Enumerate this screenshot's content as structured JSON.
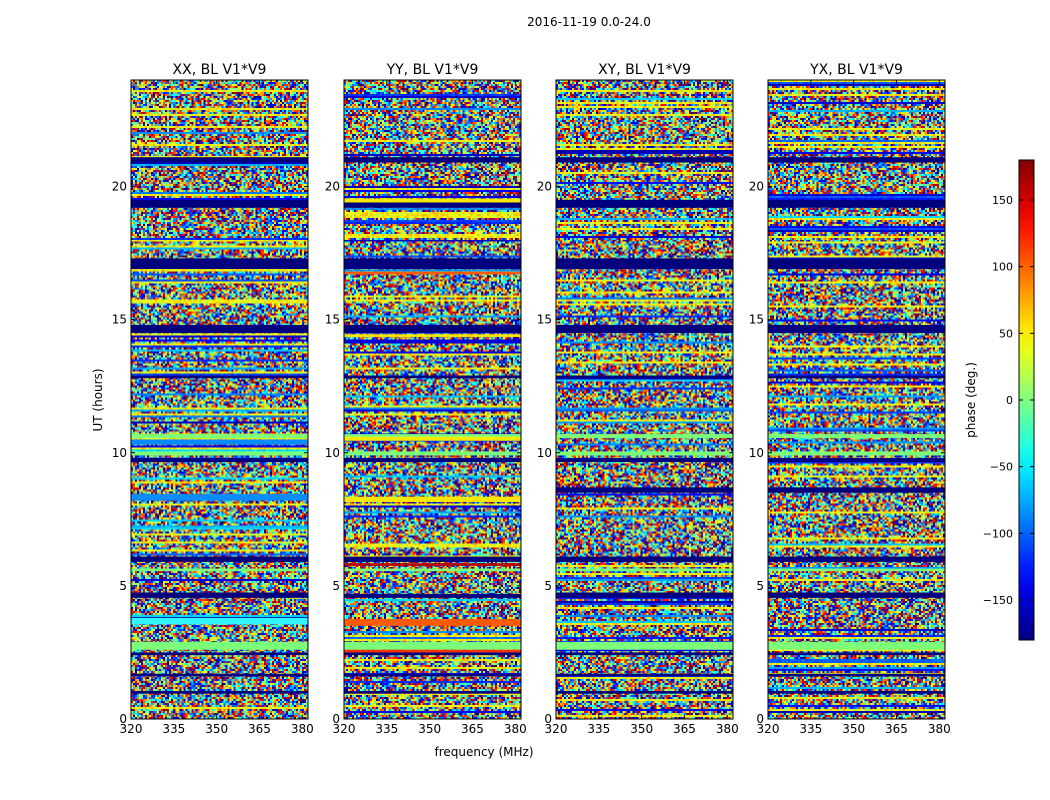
{
  "suptitle": "2016-11-19 0.0-24.0",
  "shared_xlabel": "frequency (MHz)",
  "shared_ylabel": "UT (hours)",
  "chart_data": {
    "type": "heatmap",
    "x_range": [
      320,
      382
    ],
    "y_range": [
      0,
      24
    ],
    "x_ticks": [
      320,
      335,
      350,
      365,
      380
    ],
    "y_ticks": [
      0,
      5,
      10,
      15,
      20
    ],
    "panels": [
      {
        "title": "XX, BL V1*V9",
        "extra_bands": [
          [
            3.55,
            3.8,
            "#31f6ff"
          ],
          [
            4.6,
            4.75,
            "#00007f"
          ],
          [
            8.2,
            8.45,
            "#0a8cff"
          ],
          [
            10.3,
            10.5,
            "#0a8cff"
          ]
        ]
      },
      {
        "title": "YY, BL V1*V9",
        "extra_bands": [
          [
            3.5,
            3.75,
            "#ff5a00"
          ],
          [
            2.5,
            2.6,
            "#ff3000"
          ],
          [
            5.75,
            5.85,
            "#b80000"
          ],
          [
            8.15,
            8.35,
            "#f9e800"
          ],
          [
            10.45,
            10.6,
            "#f9e800"
          ],
          [
            14.35,
            14.45,
            "#f9e800"
          ],
          [
            19.4,
            19.55,
            "#f9e800"
          ],
          [
            16.7,
            16.8,
            "#ff5a00"
          ]
        ]
      },
      {
        "title": "XY, BL V1*V9",
        "extra_bands": [
          [
            8.5,
            8.7,
            "#00007f"
          ],
          [
            4.6,
            4.75,
            "#00007f"
          ]
        ]
      },
      {
        "title": "YX, BL V1*V9",
        "extra_bands": [
          [
            8.5,
            8.7,
            "#00007f"
          ],
          [
            4.6,
            4.75,
            "#00007f"
          ]
        ]
      }
    ],
    "common_bands": [
      [
        0.95,
        1.05,
        "#00007f"
      ],
      [
        1.6,
        1.7,
        "#00007f"
      ],
      [
        2.4,
        2.5,
        "#00007f"
      ],
      [
        4.55,
        4.7,
        "#00007f"
      ],
      [
        5.9,
        6.1,
        "#00007f"
      ],
      [
        9.65,
        9.8,
        "#00007f"
      ],
      [
        12.8,
        12.9,
        "#00007f"
      ],
      [
        14.5,
        14.8,
        "#00007f"
      ],
      [
        16.9,
        17.3,
        "#00007f"
      ],
      [
        19.2,
        19.5,
        "#00007f"
      ],
      [
        20.9,
        21.1,
        "#00007f"
      ],
      [
        9.9,
        10.05,
        "#7cff79"
      ],
      [
        10.55,
        10.7,
        "#7cff79"
      ],
      [
        2.6,
        2.9,
        "#7cff79"
      ],
      [
        5.55,
        5.65,
        "#7cff79"
      ]
    ],
    "colorbar": {
      "label": "phase (deg.)",
      "range": [
        -180,
        180
      ],
      "ticks": [
        150,
        100,
        50,
        0,
        -50,
        -100,
        -150
      ],
      "tick_labels": [
        "150",
        "100",
        "50",
        "0",
        "−50",
        "−100",
        "−150"
      ],
      "colormap": "jet"
    }
  }
}
